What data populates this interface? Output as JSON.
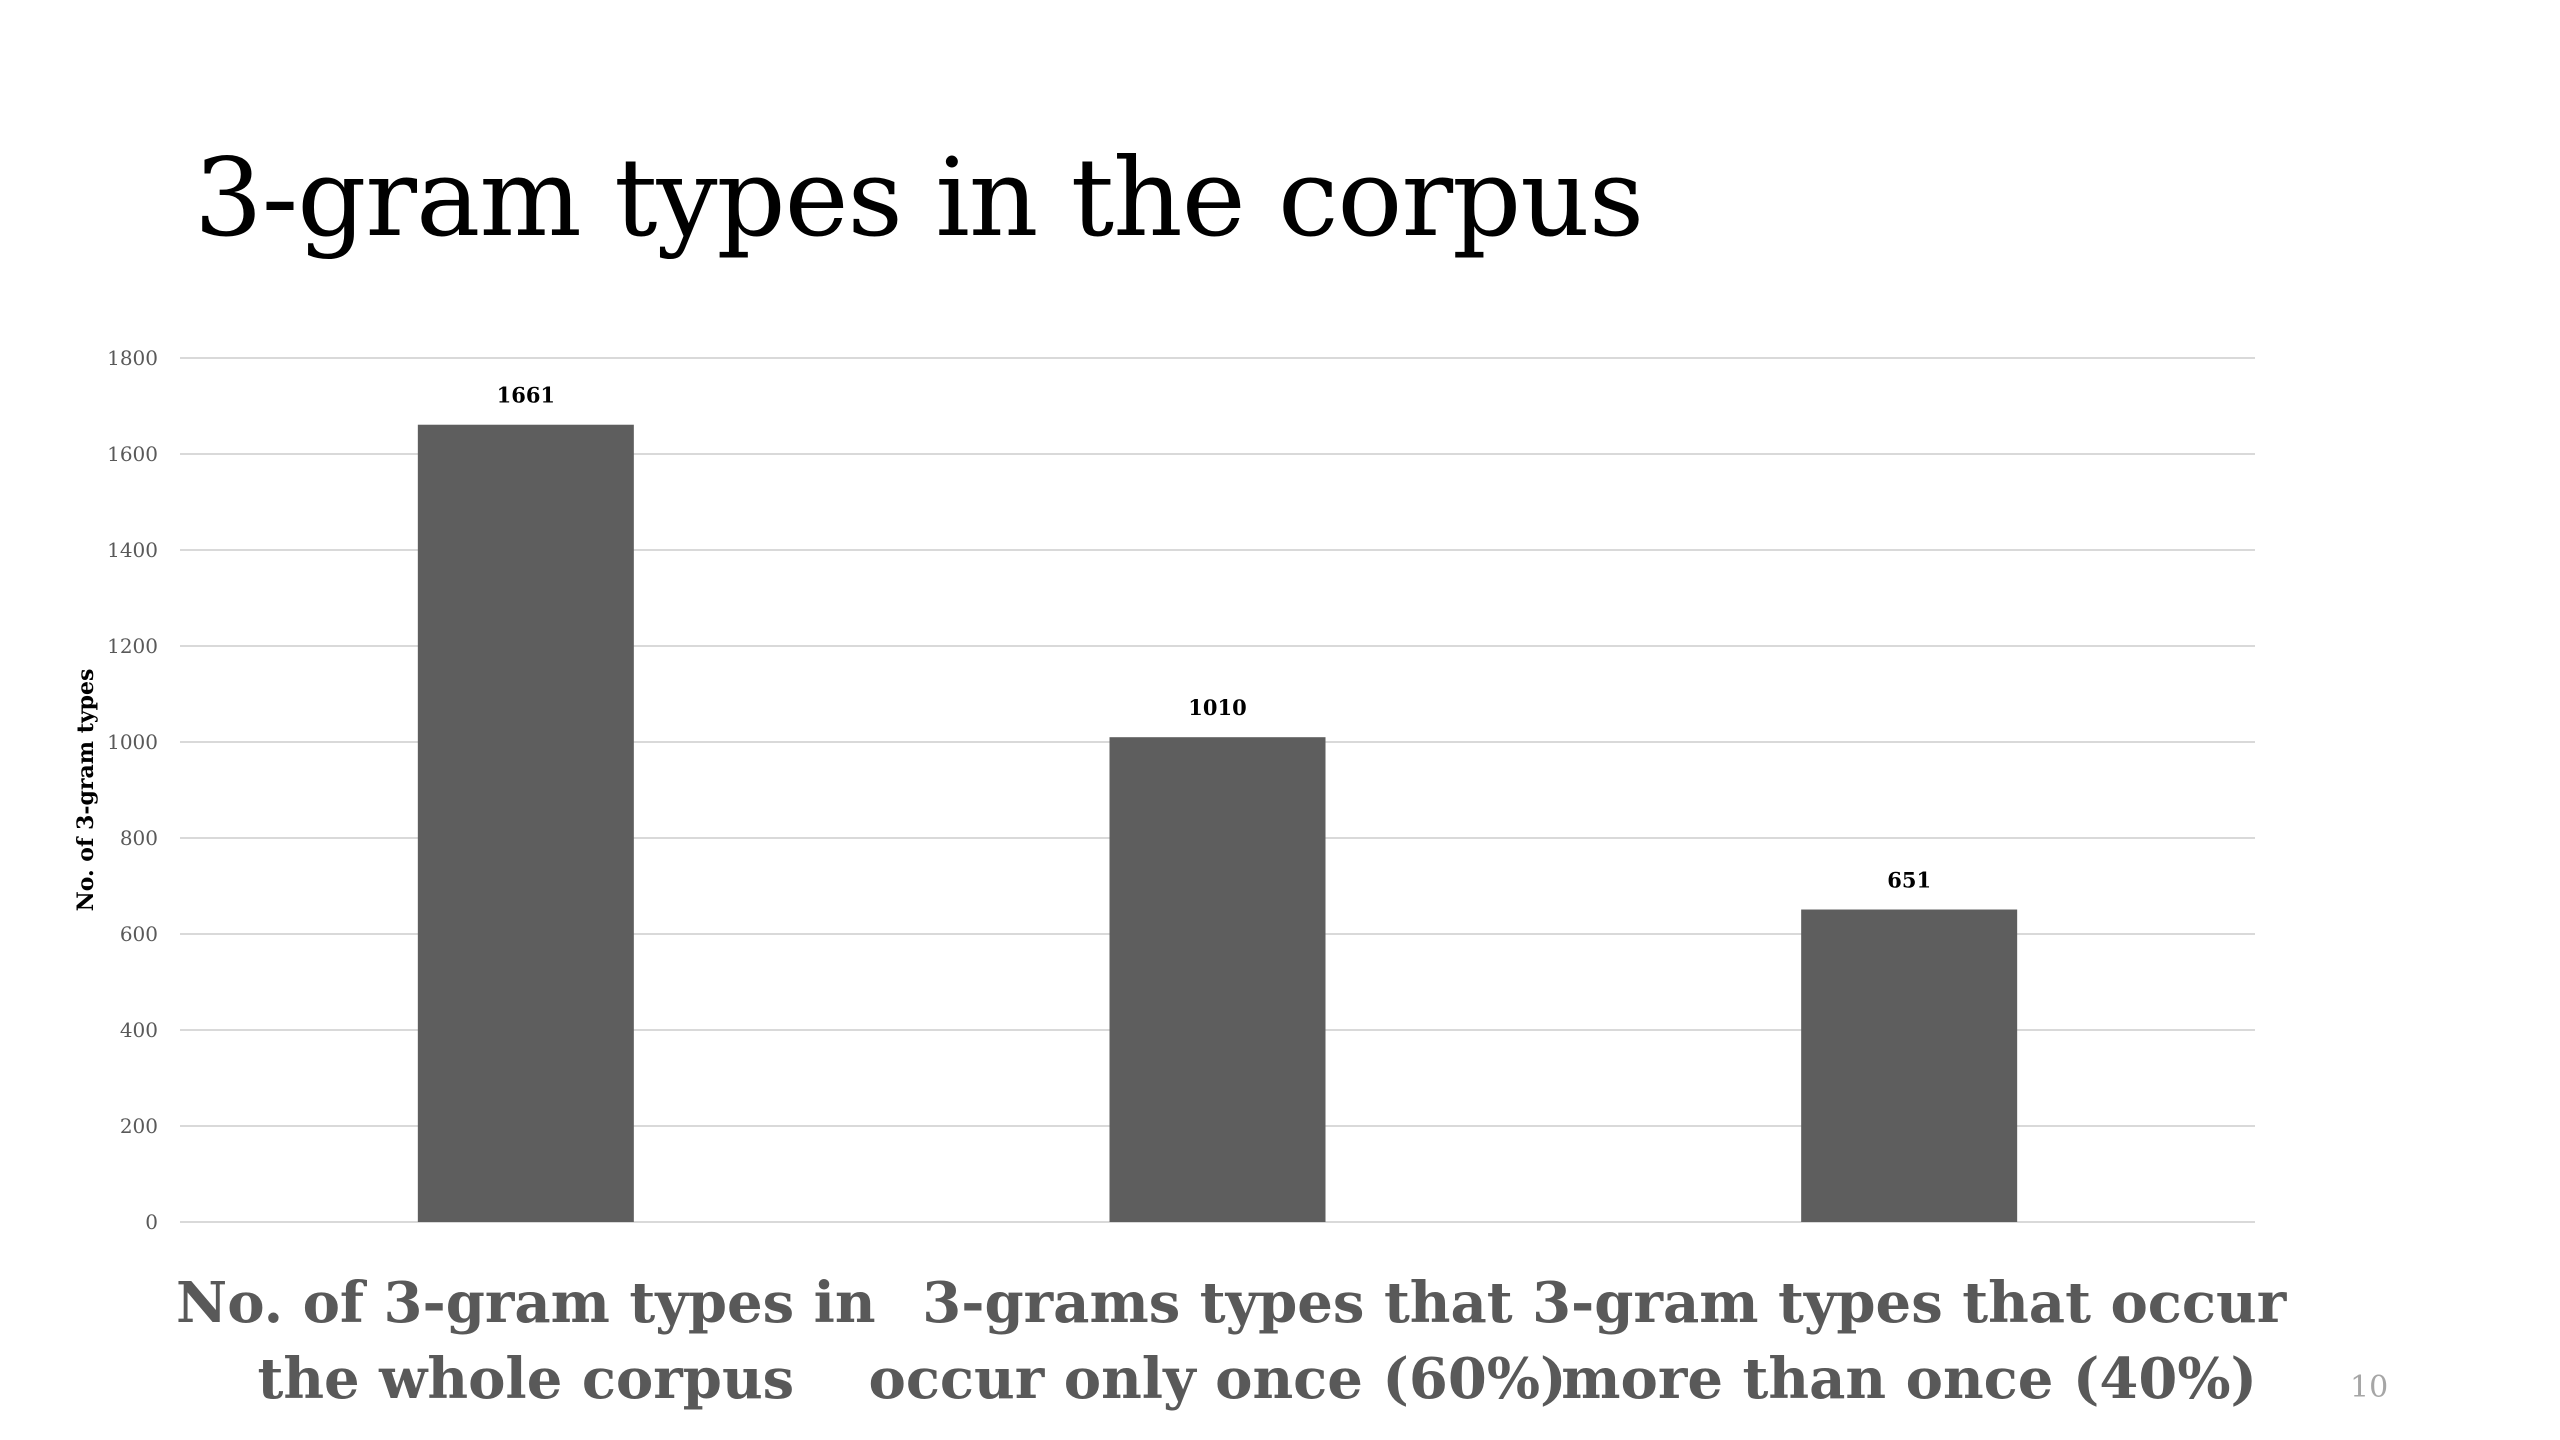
{
  "slide": {
    "title": "3-gram types in the corpus",
    "page_number": "10"
  },
  "colors": {
    "bar": "#5e5e5e",
    "gridline": "#d9d9d9",
    "axis_text": "#595959",
    "category_text": "#595959",
    "page_number": "#a6a6a6"
  },
  "chart_data": {
    "type": "bar",
    "title": "",
    "xlabel": "",
    "ylabel": "No. of 3-gram types",
    "categories": [
      [
        "No. of 3-gram types in",
        "the whole corpus"
      ],
      [
        "3-grams types that",
        "occur only once (60%)"
      ],
      [
        "3-gram types that occur",
        "more than once (40%)"
      ]
    ],
    "values": [
      1661,
      1010,
      651
    ],
    "data_labels": [
      "1661",
      "1010",
      "651"
    ],
    "ylim": [
      0,
      1800
    ],
    "yticks": [
      0,
      200,
      400,
      600,
      800,
      1000,
      1200,
      1400,
      1600,
      1800
    ],
    "grid": true,
    "legend": "none"
  }
}
